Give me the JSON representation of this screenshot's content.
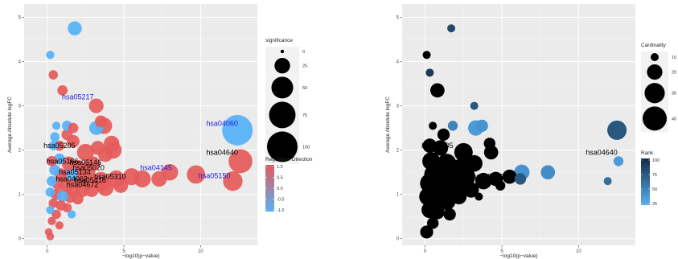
{
  "chart_data": [
    {
      "type": "scatter",
      "title": "",
      "xlabel": "−log10(p−value)",
      "ylabel": "Average Absolute logFC",
      "xlim": [
        -1.5,
        13.7
      ],
      "ylim": [
        -0.15,
        5.3
      ],
      "xticks": [
        0,
        5,
        10
      ],
      "yticks": [
        0,
        1,
        2,
        3,
        4,
        5
      ],
      "grid": true,
      "size_legend": {
        "title": "significance",
        "breaks": [
          0,
          25,
          50,
          75,
          100
        ]
      },
      "color_legend": {
        "title": "Regulation Direction",
        "breaks": [
          "1.0",
          "0.5",
          "0.0",
          "-0.5",
          "-1.0"
        ],
        "low_color": "#56B1F7",
        "high_color": "#E55A5A"
      },
      "points": [
        {
          "x": 1.8,
          "y": 4.75,
          "s": 20,
          "c": -1
        },
        {
          "x": 0.2,
          "y": 4.15,
          "s": 6,
          "c": -1
        },
        {
          "x": 0.4,
          "y": 3.7,
          "s": 8,
          "c": 1
        },
        {
          "x": 1.0,
          "y": 3.35,
          "s": 10,
          "c": 1
        },
        {
          "x": 3.2,
          "y": 3.0,
          "s": 22,
          "c": 1
        },
        {
          "x": 3.5,
          "y": 2.65,
          "s": 14,
          "c": 1
        },
        {
          "x": 3.2,
          "y": 2.5,
          "s": 20,
          "c": -1
        },
        {
          "x": 3.7,
          "y": 2.55,
          "s": 28,
          "c": 1
        },
        {
          "x": 12.4,
          "y": 2.45,
          "s": 100,
          "c": -1
        },
        {
          "x": 0.6,
          "y": 2.55,
          "s": 6,
          "c": -1
        },
        {
          "x": 1.3,
          "y": 2.55,
          "s": 10,
          "c": -1
        },
        {
          "x": 1.7,
          "y": 2.5,
          "s": 10,
          "c": 1
        },
        {
          "x": 1.3,
          "y": 2.35,
          "s": 12,
          "c": 1
        },
        {
          "x": 0.5,
          "y": 2.3,
          "s": 8,
          "c": -1
        },
        {
          "x": 0.4,
          "y": 2.1,
          "s": 8,
          "c": -1
        },
        {
          "x": 0.8,
          "y": 2.1,
          "s": 10,
          "c": 1
        },
        {
          "x": 1.7,
          "y": 2.2,
          "s": 16,
          "c": 1
        },
        {
          "x": 4.2,
          "y": 2.15,
          "s": 25,
          "c": 1
        },
        {
          "x": 3.3,
          "y": 2.05,
          "s": 20,
          "c": 1
        },
        {
          "x": 2.5,
          "y": 1.95,
          "s": 30,
          "c": 1
        },
        {
          "x": 4.3,
          "y": 2.0,
          "s": 30,
          "c": 1
        },
        {
          "x": 3.8,
          "y": 1.9,
          "s": 22,
          "c": 1
        },
        {
          "x": 12.6,
          "y": 1.75,
          "s": 60,
          "c": 1
        },
        {
          "x": 0.3,
          "y": 1.75,
          "s": 10,
          "c": 1
        },
        {
          "x": 0.8,
          "y": 1.8,
          "s": 12,
          "c": -1
        },
        {
          "x": 1.4,
          "y": 1.7,
          "s": 20,
          "c": 1
        },
        {
          "x": 2.0,
          "y": 1.6,
          "s": 25,
          "c": 1
        },
        {
          "x": 2.6,
          "y": 1.55,
          "s": 30,
          "c": 1
        },
        {
          "x": 3.0,
          "y": 1.7,
          "s": 20,
          "c": 1
        },
        {
          "x": 0.5,
          "y": 1.55,
          "s": 12,
          "c": -1
        },
        {
          "x": 0.9,
          "y": 1.45,
          "s": 15,
          "c": 1
        },
        {
          "x": 1.5,
          "y": 1.45,
          "s": 25,
          "c": -1
        },
        {
          "x": 2.2,
          "y": 1.35,
          "s": 30,
          "c": 1
        },
        {
          "x": 2.8,
          "y": 1.3,
          "s": 25,
          "c": 1
        },
        {
          "x": 3.5,
          "y": 1.3,
          "s": 35,
          "c": 1
        },
        {
          "x": 4.5,
          "y": 1.35,
          "s": 30,
          "c": 1
        },
        {
          "x": 5.5,
          "y": 1.4,
          "s": 30,
          "c": 1
        },
        {
          "x": 6.2,
          "y": 1.35,
          "s": 30,
          "c": 1
        },
        {
          "x": 7.3,
          "y": 1.35,
          "s": 25,
          "c": 1
        },
        {
          "x": 8.0,
          "y": 1.5,
          "s": 28,
          "c": 1
        },
        {
          "x": 9.7,
          "y": 1.45,
          "s": 35,
          "c": 1
        },
        {
          "x": 12.1,
          "y": 1.3,
          "s": 40,
          "c": 1
        },
        {
          "x": 0.3,
          "y": 1.3,
          "s": 10,
          "c": -1
        },
        {
          "x": 0.7,
          "y": 1.25,
          "s": 15,
          "c": 1
        },
        {
          "x": 1.2,
          "y": 1.2,
          "s": 20,
          "c": 1
        },
        {
          "x": 1.7,
          "y": 1.15,
          "s": 25,
          "c": 1
        },
        {
          "x": 2.3,
          "y": 1.1,
          "s": 20,
          "c": 1
        },
        {
          "x": 2.9,
          "y": 1.1,
          "s": 20,
          "c": 1
        },
        {
          "x": 3.8,
          "y": 1.15,
          "s": 28,
          "c": 1
        },
        {
          "x": 4.8,
          "y": 1.2,
          "s": 22,
          "c": 1
        },
        {
          "x": 0.2,
          "y": 1.05,
          "s": 8,
          "c": -1
        },
        {
          "x": 0.6,
          "y": 1.0,
          "s": 12,
          "c": 1
        },
        {
          "x": 1.0,
          "y": 0.95,
          "s": 12,
          "c": -1
        },
        {
          "x": 1.5,
          "y": 0.95,
          "s": 15,
          "c": 1
        },
        {
          "x": 2.0,
          "y": 0.9,
          "s": 12,
          "c": 1
        },
        {
          "x": 0.4,
          "y": 0.8,
          "s": 8,
          "c": 1
        },
        {
          "x": 0.9,
          "y": 0.75,
          "s": 10,
          "c": 1
        },
        {
          "x": 1.3,
          "y": 0.7,
          "s": 8,
          "c": 1
        },
        {
          "x": 0.2,
          "y": 0.65,
          "s": 6,
          "c": -1
        },
        {
          "x": 0.6,
          "y": 0.55,
          "s": 8,
          "c": 1
        },
        {
          "x": 1.6,
          "y": 0.55,
          "s": 6,
          "c": -1
        },
        {
          "x": 0.3,
          "y": 0.4,
          "s": 6,
          "c": 1
        },
        {
          "x": 0.8,
          "y": 0.3,
          "s": 6,
          "c": 1
        },
        {
          "x": 0.1,
          "y": 0.15,
          "s": 5,
          "c": 1
        },
        {
          "x": 0.2,
          "y": 0.05,
          "s": 5,
          "c": 1
        }
      ],
      "labels": [
        {
          "text": "hsa05217",
          "x": 2.0,
          "y": 3.2,
          "color": "#2222dd"
        },
        {
          "text": "hsa04060",
          "x": 11.4,
          "y": 2.6,
          "color": "#2222dd"
        },
        {
          "text": "hsa05205",
          "x": 0.8,
          "y": 2.1,
          "color": "#000000"
        },
        {
          "text": "hsa04640",
          "x": 11.4,
          "y": 1.95,
          "color": "#000000"
        },
        {
          "text": "hsa05166",
          "x": 1.0,
          "y": 1.75,
          "color": "#000000"
        },
        {
          "text": "hsa05146",
          "x": 2.5,
          "y": 1.72,
          "color": "#000000"
        },
        {
          "text": "hsa05020",
          "x": 2.7,
          "y": 1.6,
          "color": "#000000"
        },
        {
          "text": "hsa05134",
          "x": 1.8,
          "y": 1.5,
          "color": "#000000"
        },
        {
          "text": "hsa05310",
          "x": 4.1,
          "y": 1.4,
          "color": "#000000"
        },
        {
          "text": "hsa04145",
          "x": 7.1,
          "y": 1.6,
          "color": "#2222dd"
        },
        {
          "text": "hsa05150",
          "x": 10.9,
          "y": 1.42,
          "color": "#2222dd"
        },
        {
          "text": "hsa04062",
          "x": 1.6,
          "y": 1.35,
          "color": "#000000"
        },
        {
          "text": "hsa05416",
          "x": 2.8,
          "y": 1.32,
          "color": "#000000"
        },
        {
          "text": "hsa04672",
          "x": 2.3,
          "y": 1.22,
          "color": "#000000"
        }
      ]
    },
    {
      "type": "scatter",
      "title": "",
      "xlabel": "−log10(p−value)",
      "ylabel": "Average Absolute logFC",
      "xlim": [
        -1.5,
        13.7
      ],
      "ylim": [
        -0.15,
        5.3
      ],
      "xticks": [
        0,
        5,
        10
      ],
      "yticks": [
        0,
        1,
        2,
        3,
        4,
        5
      ],
      "grid": true,
      "size_legend": {
        "title": "Cardinality",
        "breaks": [
          10,
          20,
          30,
          40
        ]
      },
      "color_legend": {
        "title": "Rank",
        "breaks": [
          "100",
          "75",
          "50",
          "25"
        ],
        "low_color": "#56B1F7",
        "high_color": "#132B43"
      },
      "points": [
        {
          "x": 1.7,
          "y": 4.75,
          "s": 8,
          "r": 80
        },
        {
          "x": 0.1,
          "y": 4.15,
          "s": 7,
          "r": 100
        },
        {
          "x": 0.3,
          "y": 3.75,
          "s": 10,
          "r": 90
        },
        {
          "x": 0.8,
          "y": 3.35,
          "s": 18,
          "r": 100
        },
        {
          "x": 3.2,
          "y": 3.0,
          "s": 9,
          "r": 70
        },
        {
          "x": 3.3,
          "y": 2.5,
          "s": 20,
          "r": 25
        },
        {
          "x": 3.7,
          "y": 2.55,
          "s": 15,
          "r": 30
        },
        {
          "x": 12.5,
          "y": 2.45,
          "s": 28,
          "r": 70
        },
        {
          "x": 0.5,
          "y": 2.55,
          "s": 9,
          "r": 100
        },
        {
          "x": 1.8,
          "y": 2.55,
          "s": 12,
          "r": 40
        },
        {
          "x": 1.2,
          "y": 2.35,
          "s": 15,
          "r": 100
        },
        {
          "x": 0.3,
          "y": 2.1,
          "s": 18,
          "r": 100
        },
        {
          "x": 1.0,
          "y": 2.05,
          "s": 20,
          "r": 100
        },
        {
          "x": 4.2,
          "y": 2.15,
          "s": 14,
          "r": 100
        },
        {
          "x": 2.5,
          "y": 1.95,
          "s": 26,
          "r": 100
        },
        {
          "x": 4.3,
          "y": 1.95,
          "s": 18,
          "r": 100
        },
        {
          "x": 12.6,
          "y": 1.75,
          "s": 12,
          "r": 25
        },
        {
          "x": 0.4,
          "y": 1.75,
          "s": 25,
          "r": 100
        },
        {
          "x": 1.4,
          "y": 1.7,
          "s": 28,
          "r": 100
        },
        {
          "x": 2.3,
          "y": 1.6,
          "s": 25,
          "r": 100
        },
        {
          "x": 3.2,
          "y": 1.7,
          "s": 22,
          "r": 100
        },
        {
          "x": 0.6,
          "y": 1.45,
          "s": 30,
          "r": 100
        },
        {
          "x": 1.6,
          "y": 1.45,
          "s": 35,
          "r": 100
        },
        {
          "x": 2.5,
          "y": 1.4,
          "s": 38,
          "r": 100
        },
        {
          "x": 3.8,
          "y": 1.3,
          "s": 22,
          "r": 100
        },
        {
          "x": 4.6,
          "y": 1.35,
          "s": 18,
          "r": 100
        },
        {
          "x": 5.5,
          "y": 1.4,
          "s": 18,
          "r": 100
        },
        {
          "x": 6.2,
          "y": 1.35,
          "s": 14,
          "r": 70
        },
        {
          "x": 6.3,
          "y": 1.5,
          "s": 20,
          "r": 30
        },
        {
          "x": 8.0,
          "y": 1.5,
          "s": 18,
          "r": 35
        },
        {
          "x": 11.9,
          "y": 1.3,
          "s": 10,
          "r": 55
        },
        {
          "x": 0.3,
          "y": 1.25,
          "s": 28,
          "r": 100
        },
        {
          "x": 1.0,
          "y": 1.2,
          "s": 32,
          "r": 100
        },
        {
          "x": 1.7,
          "y": 1.15,
          "s": 35,
          "r": 100
        },
        {
          "x": 2.2,
          "y": 1.1,
          "s": 30,
          "r": 100
        },
        {
          "x": 3.0,
          "y": 1.1,
          "s": 20,
          "r": 100
        },
        {
          "x": 4.9,
          "y": 1.2,
          "s": 12,
          "r": 100
        },
        {
          "x": 3.5,
          "y": 0.95,
          "s": 10,
          "r": 100
        },
        {
          "x": 0.2,
          "y": 0.95,
          "s": 25,
          "r": 100
        },
        {
          "x": 0.8,
          "y": 0.9,
          "s": 28,
          "r": 100
        },
        {
          "x": 1.4,
          "y": 0.85,
          "s": 25,
          "r": 100
        },
        {
          "x": 2.2,
          "y": 0.95,
          "s": 20,
          "r": 100
        },
        {
          "x": 0.3,
          "y": 0.65,
          "s": 22,
          "r": 100
        },
        {
          "x": 0.8,
          "y": 0.6,
          "s": 18,
          "r": 100
        },
        {
          "x": 1.6,
          "y": 0.55,
          "s": 15,
          "r": 100
        },
        {
          "x": 0.5,
          "y": 0.35,
          "s": 14,
          "r": 100
        },
        {
          "x": 0.1,
          "y": 0.15,
          "s": 16,
          "r": 100
        }
      ],
      "labels": [
        {
          "text": "hsa04640",
          "x": 11.5,
          "y": 1.95,
          "color": "#000000"
        },
        {
          "text": "hsa05205",
          "x": 0.8,
          "y": 2.1,
          "color": "#000000"
        },
        {
          "text": "hsa05310",
          "x": 4.1,
          "y": 1.4,
          "color": "#000000"
        }
      ]
    }
  ]
}
